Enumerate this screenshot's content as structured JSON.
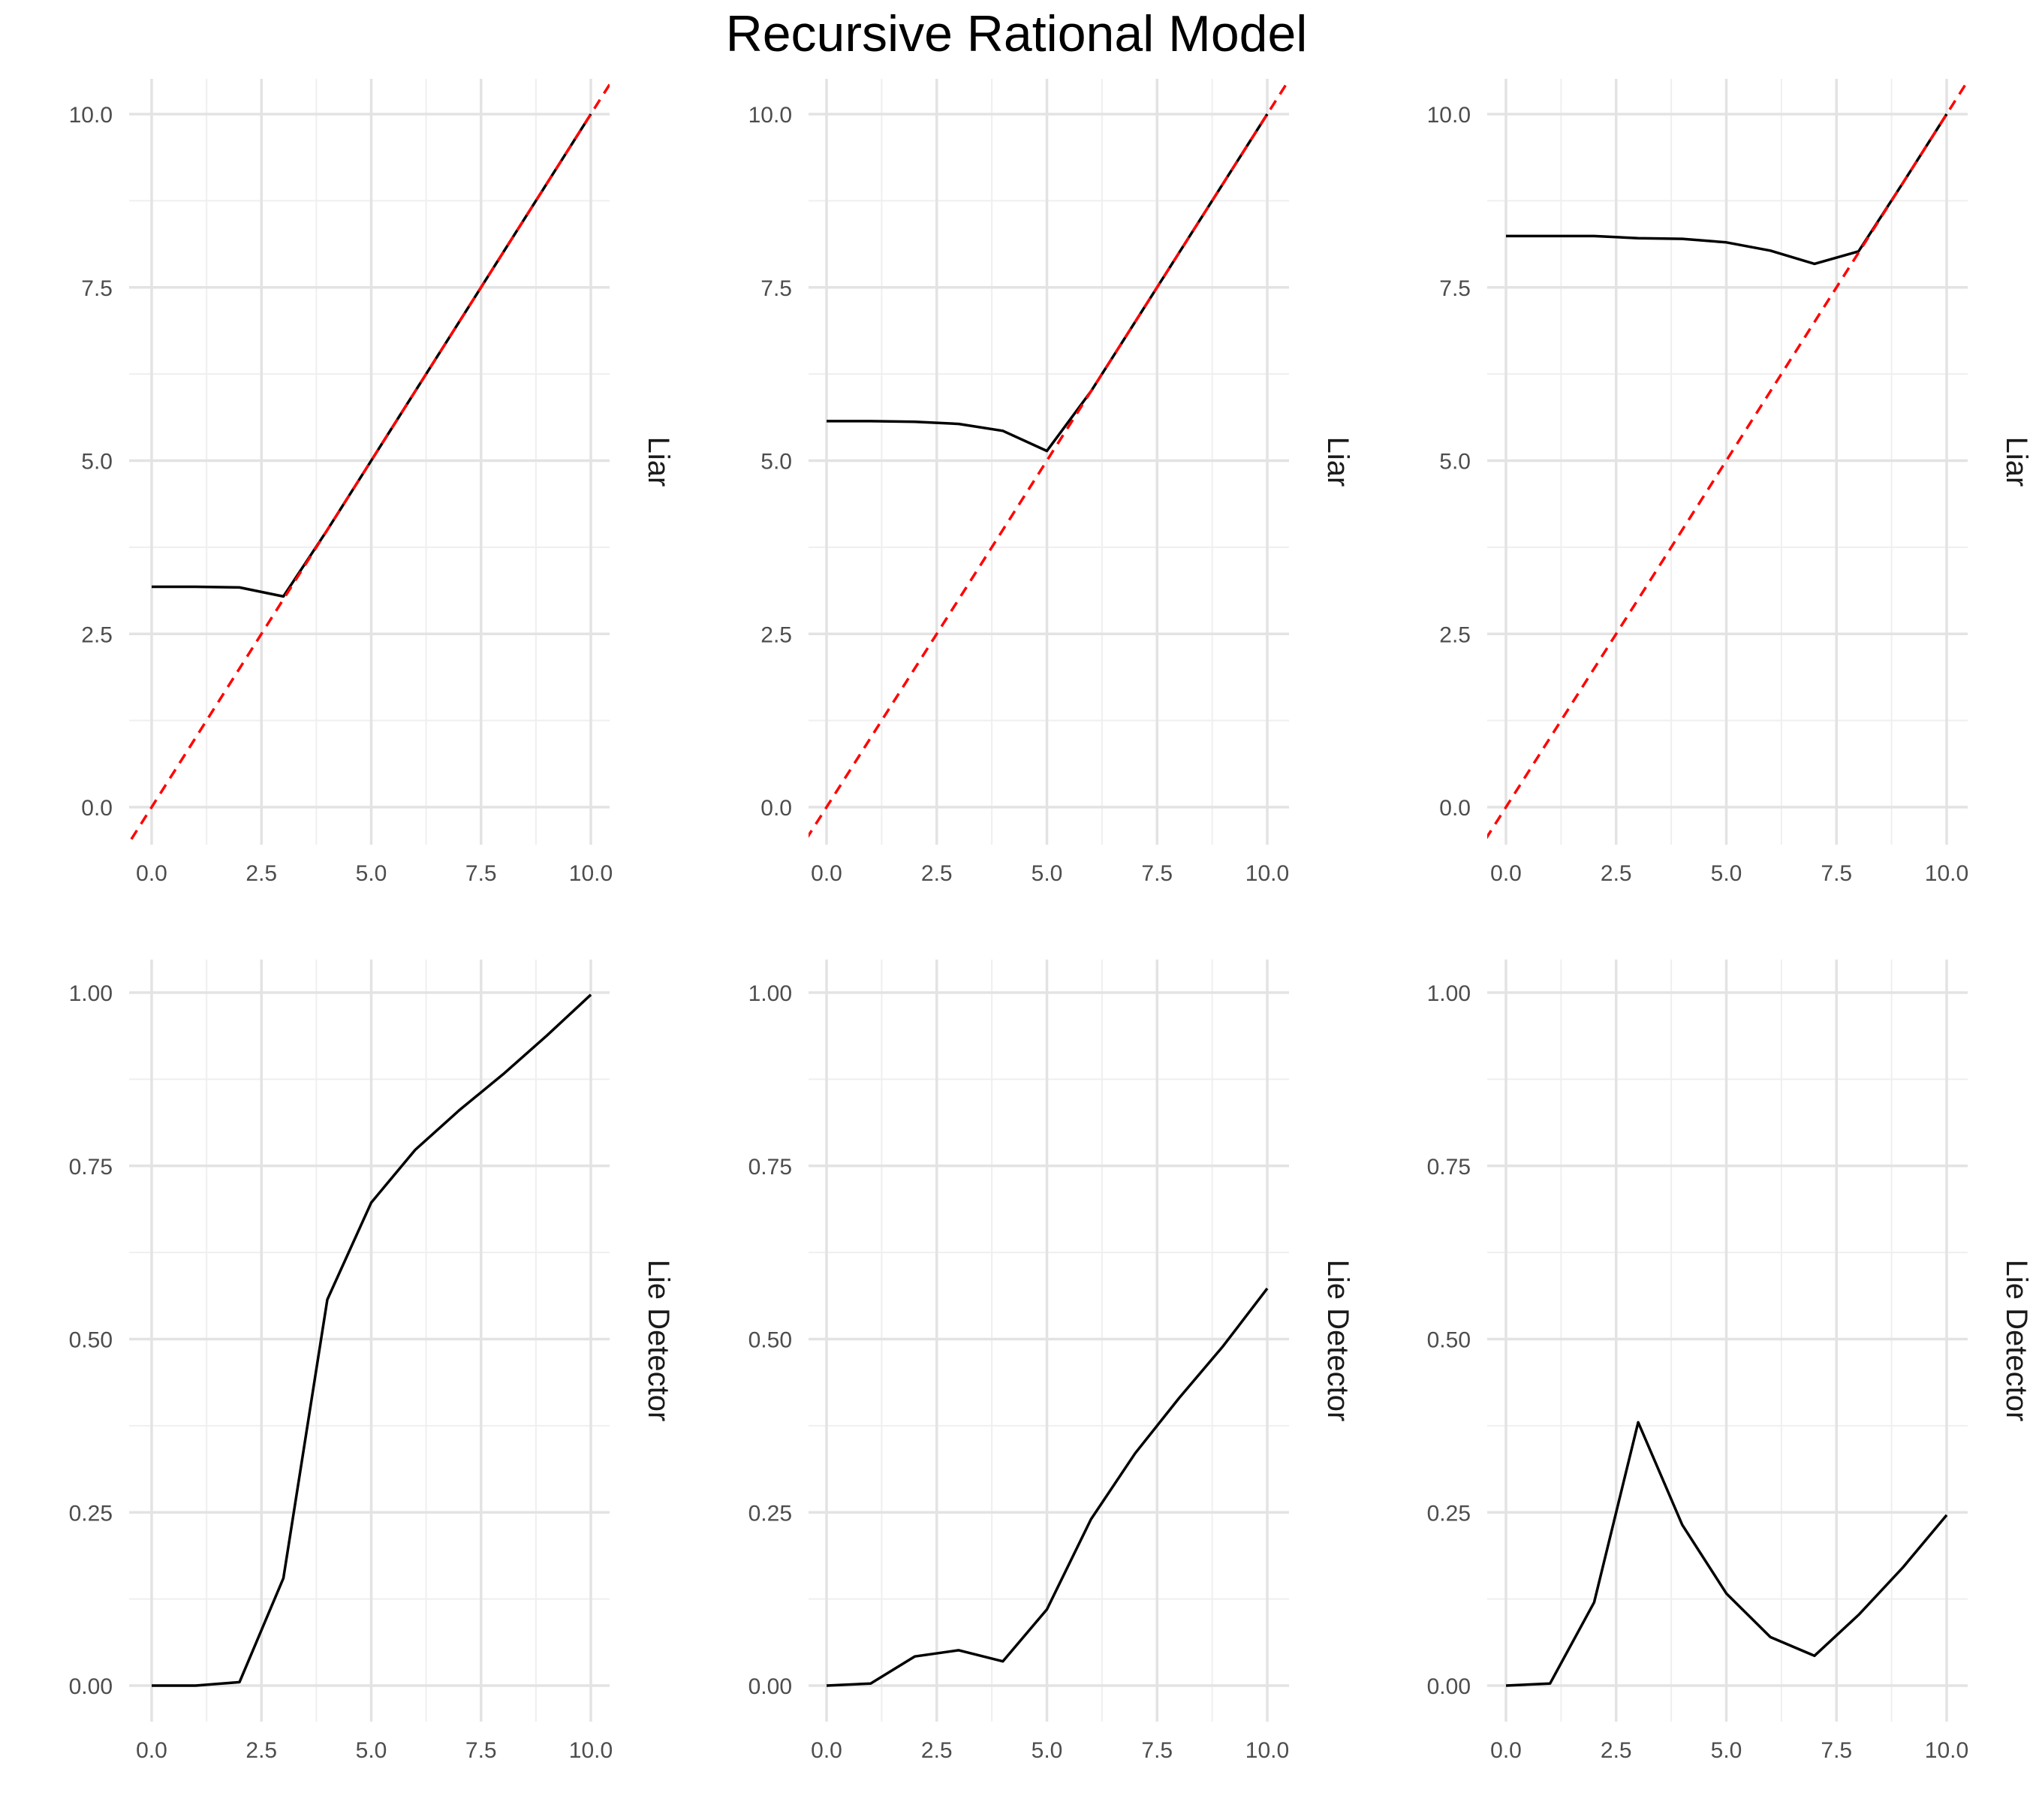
{
  "title": "Recursive Rational Model",
  "colors": {
    "line": "#000000",
    "reference": "#ff0000",
    "grid_major": "#e3e3e3",
    "grid_minor": "#efefef",
    "tick_text": "#4d4d4d"
  },
  "chart_data": [
    {
      "type": "line",
      "row": "Liar",
      "column": 1,
      "xlim": [
        0,
        10
      ],
      "ylim": [
        0,
        10
      ],
      "x_ticks": [
        "0.0",
        "2.5",
        "5.0",
        "7.5",
        "10.0"
      ],
      "y_ticks": [
        "0.0",
        "2.5",
        "5.0",
        "7.5",
        "10.0"
      ],
      "strip_label": "Liar",
      "x": [
        0,
        1,
        2,
        3,
        4,
        5,
        6,
        7,
        8,
        9,
        10
      ],
      "y": [
        3.18,
        3.18,
        3.17,
        3.04,
        4.0,
        5.0,
        6.0,
        7.0,
        8.0,
        9.0,
        10.0
      ],
      "reference_line": "y = x (dashed red)"
    },
    {
      "type": "line",
      "row": "Liar",
      "column": 2,
      "xlim": [
        0,
        10
      ],
      "ylim": [
        0,
        10
      ],
      "x_ticks": [
        "0.0",
        "2.5",
        "5.0",
        "7.5",
        "10.0"
      ],
      "y_ticks": [
        "0.0",
        "2.5",
        "5.0",
        "7.5",
        "10.0"
      ],
      "strip_label": "Liar",
      "x": [
        0,
        1,
        2,
        3,
        4,
        5,
        6,
        7,
        8,
        9,
        10
      ],
      "y": [
        5.57,
        5.57,
        5.56,
        5.53,
        5.43,
        5.14,
        6.0,
        7.0,
        8.0,
        9.0,
        10.0
      ],
      "reference_line": "y = x (dashed red)"
    },
    {
      "type": "line",
      "row": "Liar",
      "column": 3,
      "xlim": [
        0,
        10
      ],
      "ylim": [
        0,
        10
      ],
      "x_ticks": [
        "0.0",
        "2.5",
        "5.0",
        "7.5",
        "10.0"
      ],
      "y_ticks": [
        "0.0",
        "2.5",
        "5.0",
        "7.5",
        "10.0"
      ],
      "strip_label": "Liar",
      "x": [
        0,
        1,
        2,
        3,
        4,
        5,
        6,
        7,
        8,
        9,
        10
      ],
      "y": [
        8.24,
        8.24,
        8.24,
        8.21,
        8.2,
        8.15,
        8.03,
        7.84,
        8.02,
        9.0,
        10.0
      ],
      "reference_line": "y = x (dashed red)"
    },
    {
      "type": "line",
      "row": "Lie Detector",
      "column": 1,
      "xlim": [
        0,
        10
      ],
      "ylim": [
        0,
        1
      ],
      "x_ticks": [
        "0.0",
        "2.5",
        "5.0",
        "7.5",
        "10.0"
      ],
      "y_ticks": [
        "0.00",
        "0.25",
        "0.50",
        "0.75",
        "1.00"
      ],
      "strip_label": "Lie Detector",
      "x": [
        0,
        1,
        2,
        3,
        4,
        5,
        6,
        7,
        8,
        9,
        10
      ],
      "y": [
        0.0,
        0.0,
        0.005,
        0.155,
        0.557,
        0.697,
        0.773,
        0.83,
        0.882,
        0.938,
        0.997
      ]
    },
    {
      "type": "line",
      "row": "Lie Detector",
      "column": 2,
      "xlim": [
        0,
        10
      ],
      "ylim": [
        0,
        1
      ],
      "x_ticks": [
        "0.0",
        "2.5",
        "5.0",
        "7.5",
        "10.0"
      ],
      "y_ticks": [
        "0.00",
        "0.25",
        "0.50",
        "0.75",
        "1.00"
      ],
      "strip_label": "Lie Detector",
      "x": [
        0,
        1,
        2,
        3,
        4,
        5,
        6,
        7,
        8,
        9,
        10
      ],
      "y": [
        0.0,
        0.003,
        0.042,
        0.051,
        0.035,
        0.11,
        0.24,
        0.335,
        0.415,
        0.49,
        0.573
      ]
    },
    {
      "type": "line",
      "row": "Lie Detector",
      "column": 3,
      "xlim": [
        0,
        10
      ],
      "ylim": [
        0,
        1
      ],
      "x_ticks": [
        "0.0",
        "2.5",
        "5.0",
        "7.5",
        "10.0"
      ],
      "y_ticks": [
        "0.00",
        "0.25",
        "0.50",
        "0.75",
        "1.00"
      ],
      "strip_label": "Lie Detector",
      "x": [
        0,
        1,
        2,
        3,
        4,
        5,
        6,
        7,
        8,
        9,
        10
      ],
      "y": [
        0.0,
        0.003,
        0.12,
        0.38,
        0.232,
        0.133,
        0.07,
        0.043,
        0.102,
        0.17,
        0.246
      ]
    }
  ]
}
